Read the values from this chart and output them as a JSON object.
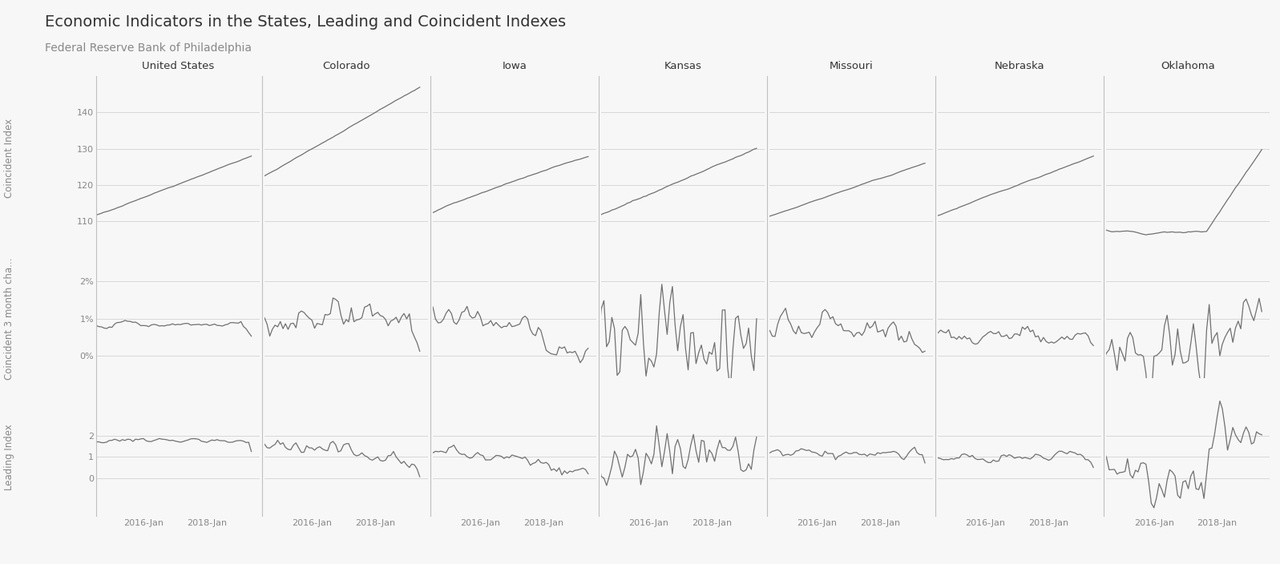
{
  "title": "Economic Indicators in the States, Leading and Coincident Indexes",
  "subtitle": "Federal Reserve Bank of Philadelphia",
  "states": [
    "United States",
    "Colorado",
    "Iowa",
    "Kansas",
    "Missouri",
    "Nebraska",
    "Oklahoma"
  ],
  "row_label_0": "Coincident Index",
  "row_label_1": "Coincident 3 month cha...",
  "row_label_2": "Leading Index",
  "yticks_row0": [
    110,
    120,
    130,
    140
  ],
  "yticks_row1_vals": [
    0.0,
    0.01,
    0.02
  ],
  "yticks_row1_labels": [
    "0%",
    "1%",
    "2%"
  ],
  "yticks_row2": [
    0,
    1,
    2
  ],
  "xtick_labels": [
    "2016-Jan",
    "2018-Jan"
  ],
  "background_color": "#f7f7f7",
  "line_color": "#707070",
  "grid_color": "#d8d8d8",
  "sep_color": "#c0c0c0",
  "title_color": "#333333",
  "subtitle_color": "#888888",
  "tick_color": "#888888",
  "title_fontsize": 14,
  "subtitle_fontsize": 10,
  "col_label_fontsize": 9.5,
  "row_label_fontsize": 8.5,
  "tick_fontsize": 8
}
